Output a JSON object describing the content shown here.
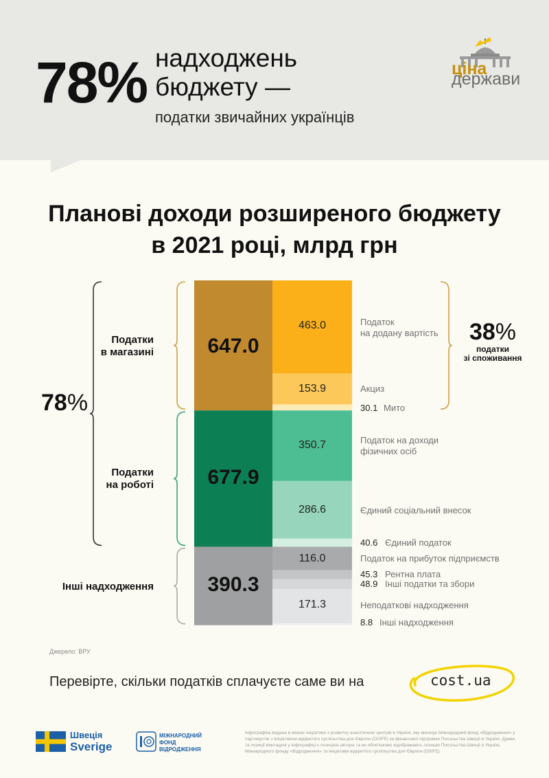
{
  "header": {
    "big_percent": "78%",
    "headline_line1": "надходжень",
    "headline_line2": "бюджету —",
    "subheadline": "податки звичайних українців",
    "logo_top": "ціна",
    "logo_bottom": "держави"
  },
  "title_line1": "Планові доходи розширеного бюджету",
  "title_line2": "в 2021 році, млрд грн",
  "colors": {
    "shop_dark": "#c28a2e",
    "shop_main": "#fbb01a",
    "shop_light": "#fcc85a",
    "shop_lighter": "#fdebb6",
    "work_dark": "#0d7f55",
    "work_main": "#4dbd93",
    "work_light": "#97d6bc",
    "work_lighter": "#d5eee2",
    "other_dark": "#9fa0a1",
    "other_main": "#a9aaac",
    "other_light": "#cfd0d2",
    "other_lighter": "#e3e4e6"
  },
  "chart_data": {
    "type": "stacked-bar",
    "title": "Планові доходи розширеного бюджету в 2021 році, млрд грн",
    "groups": [
      {
        "name": "Податки в магазині",
        "total": "647.0",
        "items": [
          {
            "label": "Податок на додану вартість",
            "value": 463.0,
            "display": "463.0",
            "color": "#fbb01a"
          },
          {
            "label": "Акциз",
            "value": 153.9,
            "display": "153.9",
            "color": "#fcc85a"
          },
          {
            "label": "Мито",
            "value": 30.1,
            "display": "30.1",
            "color": "#fdebb6"
          }
        ]
      },
      {
        "name": "Податки на роботі",
        "total": "677.9",
        "items": [
          {
            "label": "Податок на доходи фізичних осіб",
            "value": 350.7,
            "display": "350.7",
            "color": "#4dbd93"
          },
          {
            "label": "Єдиний соціальний внесок",
            "value": 286.6,
            "display": "286.6",
            "color": "#97d6bc"
          },
          {
            "label": "Єдиний податок",
            "value": 40.6,
            "display": "40.6",
            "color": "#d5eee2"
          }
        ]
      },
      {
        "name": "Інші надходження",
        "total": "390.3",
        "items": [
          {
            "label": "Податок на прибуток підприємств",
            "value": 116.0,
            "display": "116.0",
            "color": "#a9aaac"
          },
          {
            "label": "Рентна плата",
            "value": 45.3,
            "display": "45.3",
            "color": "#c3c4c6"
          },
          {
            "label": "Інші податки та збори",
            "value": 48.9,
            "display": "48.9",
            "color": "#d6d7d9"
          },
          {
            "label": "Неподаткові надходження",
            "value": 171.3,
            "display": "171.3",
            "color": "#e3e4e6"
          },
          {
            "label": "Інші надходження",
            "value": 8.8,
            "display": "8.8",
            "color": "#eeeff0"
          }
        ]
      }
    ],
    "annotations": {
      "consumption_pct_num": "38",
      "consumption_pct_sign": "%",
      "consumption_label_1": "податки",
      "consumption_label_2": "зі споживання",
      "total_pct_num": "78",
      "total_pct_sign": "%"
    }
  },
  "labels": {
    "shop_group_1": "Податки",
    "shop_group_2": "в магазині",
    "work_group_1": "Податки",
    "work_group_2": "на роботі",
    "other_group": "Інші надходження",
    "vat_1": "Податок",
    "vat_2": "на додану вартість",
    "pdfo_1": "Податок на доходи",
    "pdfo_2": "фізичних осіб"
  },
  "source": "Джерело: ВРУ",
  "footer": {
    "cta": "Перевірте, скільки податків  сплачуєте саме ви на",
    "site": "cost.ua",
    "sweden_1": "Швеція",
    "sweden_2": "Sverige",
    "irf_1": "МІЖНАРОДНИЙ",
    "irf_2": "ФОНД",
    "irf_3": "ВІДРОДЖЕННЯ",
    "disclaimer": "Інфографіка видана в межах Ініціативи з розвитку аналітичних центрів в Україні, яку виконує Міжнародний фонд «Відродження» у партнерстві з Ініціативою відкритого суспільства для Європи (OSIFE) за фінансової підтримки Посольства Швеції в Україні. Думки та позиції викладені у інфографіці є позицією автора та не обов'язково відображають позицію Посольства Швеції в Україні, Міжнародного фонду «Відродження» та Ініціативи відкритого суспільства для Європи (OSIFE)."
  }
}
